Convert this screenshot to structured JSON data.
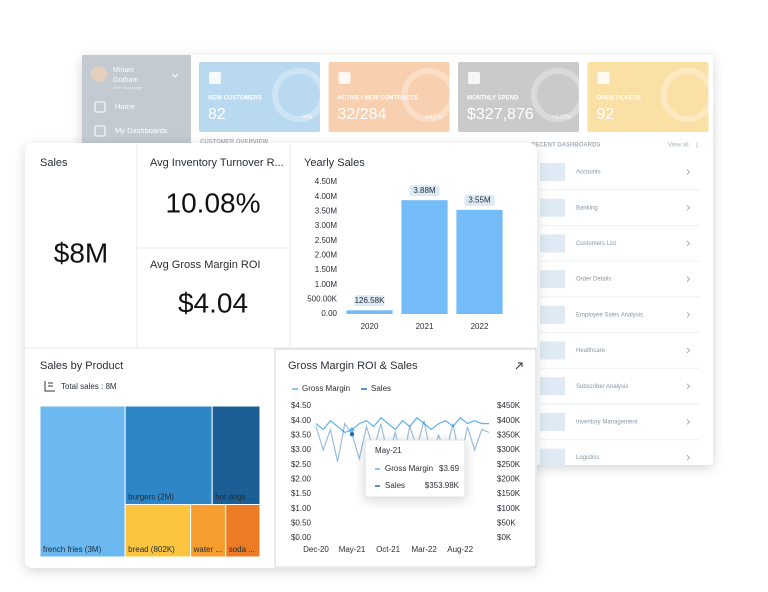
{
  "sidebar": {
    "user": {
      "name_lines": [
        "Miriam",
        "Graham"
      ],
      "role": "SVP Technology"
    },
    "nav": [
      "Home",
      "My Dashboards"
    ]
  },
  "kpi_cards": [
    {
      "label": "NEW CUSTOMERS",
      "value": "82",
      "change": "+6%"
    },
    {
      "label": "ACTIVE / NEW CONTRACTS",
      "value": "32/284",
      "change": "+4.2%"
    },
    {
      "label": "MONTHLY SPEND",
      "value": "$327,876",
      "change": "+1.12%"
    },
    {
      "label": "OPEN TICKETS",
      "value": "92"
    }
  ],
  "sections": {
    "customer_overview": "CUSTOMER OVERVIEW",
    "recent_dashboards": "RECENT DASHBOARDS",
    "view_all": "View all"
  },
  "recent_dashboards": [
    "Accounts",
    "Banking",
    "Customers List",
    "Order Details",
    "Employee Sales Analysis",
    "Healthcare",
    "Subscriber Analysis",
    "Inventory Management",
    "Logistics"
  ],
  "tiles": [
    {
      "title": "Sales",
      "value": "$8M"
    },
    {
      "title": "Avg Inventory Turnover R...",
      "value": "10.08%"
    },
    {
      "title": "Avg Gross Margin ROI",
      "value": "$4.04"
    }
  ],
  "chart_data": [
    {
      "type": "bar",
      "title": "Yearly Sales",
      "categories": [
        "2020",
        "2021",
        "2022"
      ],
      "values": [
        126580,
        3880000,
        3550000
      ],
      "value_labels": [
        "126.58K",
        "3.88M",
        "3.55M"
      ],
      "color": "#74bcf7",
      "ylim": [
        0,
        4500000
      ],
      "yticks": [
        {
          "value": 0,
          "label": "0.00"
        },
        {
          "value": 500000,
          "label": "500.00K"
        },
        {
          "value": 1000000,
          "label": "1.00M"
        },
        {
          "value": 1500000,
          "label": "1.50M"
        },
        {
          "value": 2000000,
          "label": "2.00M"
        },
        {
          "value": 2500000,
          "label": "2.50M"
        },
        {
          "value": 3000000,
          "label": "3.00M"
        },
        {
          "value": 3500000,
          "label": "3.50M"
        },
        {
          "value": 4000000,
          "label": "4.00M"
        },
        {
          "value": 4500000,
          "label": "4.50M"
        }
      ],
      "grid": false
    },
    {
      "type": "treemap",
      "title": "Sales by Product",
      "subtitle": "Total sales : 8M",
      "labels": [
        "french fries (3M)",
        "burgers (2M)",
        "hot dogs ...",
        "bread (802K)",
        "water ...",
        "soda ..."
      ],
      "values": [
        3000000,
        2000000,
        1100000,
        802000,
        430000,
        420000
      ],
      "colors": [
        "#6cb8f0",
        "#2f86c6",
        "#1b5f96",
        "#fcc43f",
        "#f59d2f",
        "#ed7a25"
      ]
    },
    {
      "type": "line",
      "title": "Gross Margin ROI & Sales",
      "x": [
        "Dec-20",
        null,
        null,
        null,
        null,
        "May-21",
        null,
        null,
        null,
        null,
        "Oct-21",
        null,
        null,
        null,
        null,
        "Mar-22",
        null,
        null,
        null,
        null,
        "Aug-22",
        null,
        null,
        null,
        null
      ],
      "series": [
        {
          "name": "Gross Margin",
          "color": "#5fb3ee",
          "axis": "y",
          "values": [
            3.9,
            3.7,
            4.0,
            3.8,
            3.6,
            3.69,
            3.9,
            4.0,
            3.8,
            4.1,
            3.9,
            3.7,
            4.0,
            3.8,
            4.1,
            3.9,
            3.7,
            3.9,
            4.0,
            3.8,
            4.1,
            3.9,
            4.0,
            3.9,
            3.9
          ],
          "value_labels": [
            null,
            null,
            null,
            null,
            null,
            "$3.69",
            null,
            null,
            null,
            null,
            null,
            null,
            null,
            null,
            null,
            null,
            null,
            null,
            null,
            null,
            null,
            null,
            null,
            null,
            null
          ]
        },
        {
          "name": "Sales",
          "color": "#1f6fb0",
          "axis": "y2",
          "values": [
            380000,
            300000,
            370000,
            260000,
            390000,
            353980,
            270000,
            380000,
            300000,
            390000,
            280000,
            360000,
            250000,
            380000,
            310000,
            400000,
            270000,
            350000,
            290000,
            390000,
            260000,
            380000,
            300000,
            370000,
            360000
          ],
          "value_labels": [
            null,
            null,
            null,
            null,
            null,
            "$353.98K",
            null,
            null,
            null,
            null,
            null,
            null,
            null,
            null,
            null,
            null,
            null,
            null,
            null,
            null,
            null,
            null,
            null,
            null,
            null
          ]
        }
      ],
      "ylim": [
        0,
        4.5
      ],
      "yticks": [
        {
          "value": 0,
          "label": "$0.00"
        },
        {
          "value": 0.5,
          "label": "$0.50"
        },
        {
          "value": 1,
          "label": "$1.00"
        },
        {
          "value": 1.5,
          "label": "$1.50"
        },
        {
          "value": 2,
          "label": "$2.00"
        },
        {
          "value": 2.5,
          "label": "$2.50"
        },
        {
          "value": 3,
          "label": "$3.00"
        },
        {
          "value": 3.5,
          "label": "$3.50"
        },
        {
          "value": 4,
          "label": "$4.00"
        },
        {
          "value": 4.5,
          "label": "$4.50"
        }
      ],
      "y2lim": [
        0,
        450000
      ],
      "y2ticks": [
        {
          "value": 0,
          "label": "$0K"
        },
        {
          "value": 50000,
          "label": "$50K"
        },
        {
          "value": 100000,
          "label": "$100K"
        },
        {
          "value": 150000,
          "label": "$150K"
        },
        {
          "value": 200000,
          "label": "$200K"
        },
        {
          "value": 250000,
          "label": "$250K"
        },
        {
          "value": 300000,
          "label": "$300K"
        },
        {
          "value": 350000,
          "label": "$350K"
        },
        {
          "value": 400000,
          "label": "$400K"
        },
        {
          "value": 450000,
          "label": "$450K"
        }
      ],
      "grid": false
    }
  ]
}
